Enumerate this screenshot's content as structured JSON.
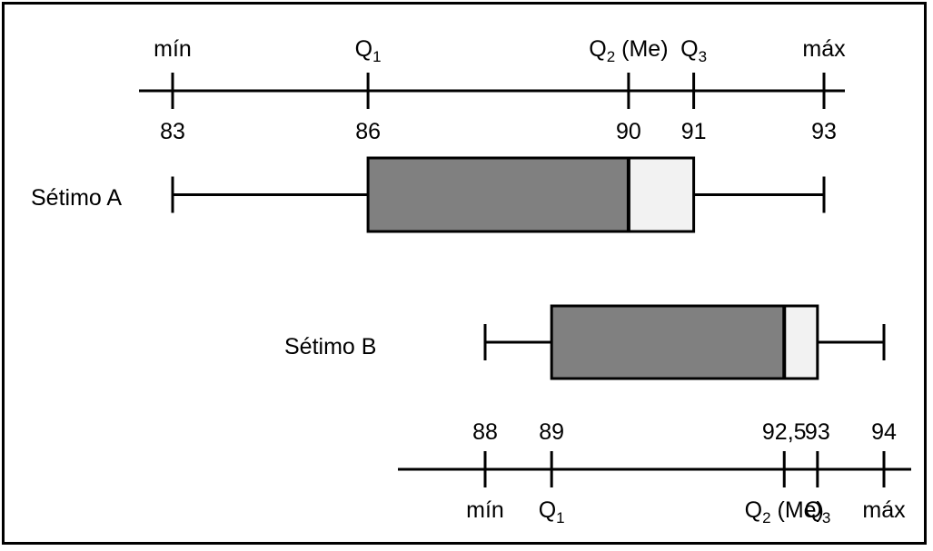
{
  "chart_data": [
    {
      "type": "box",
      "name": "Sétimo A",
      "stats": {
        "min": 83,
        "q1": 86,
        "median": 90,
        "q3": 91,
        "max": 93
      },
      "axis": {
        "ticks": [
          {
            "value": 83,
            "label": "83",
            "stat": "mín"
          },
          {
            "value": 86,
            "label": "86",
            "stat": "Q1"
          },
          {
            "value": 90,
            "label": "90",
            "stat": "Q2 (Me)"
          },
          {
            "value": 91,
            "label": "91",
            "stat": "Q3"
          },
          {
            "value": 93,
            "label": "93",
            "stat": "máx"
          }
        ]
      }
    },
    {
      "type": "box",
      "name": "Sétimo B",
      "stats": {
        "min": 88,
        "q1": 89,
        "median": 92.5,
        "q3": 93,
        "max": 94
      },
      "axis": {
        "ticks": [
          {
            "value": 88,
            "label": "88",
            "stat": "mín"
          },
          {
            "value": 89,
            "label": "89",
            "stat": "Q1"
          },
          {
            "value": 92.5,
            "label": "92,5",
            "stat": "Q2 (Me)"
          },
          {
            "value": 93,
            "label": "93",
            "stat": "Q3"
          },
          {
            "value": 94,
            "label": "94",
            "stat": "máx"
          }
        ]
      }
    }
  ],
  "colors": {
    "box_lower": "#808080",
    "box_upper": "#f2f2f2",
    "stroke": "#000000"
  }
}
